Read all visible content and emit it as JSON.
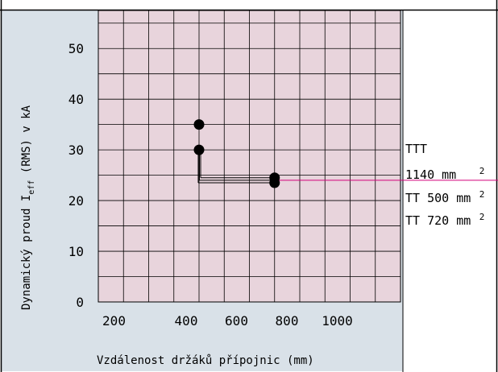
{
  "chart_data": {
    "type": "scatter",
    "xlabel": "Vzdálenost držáků přípojnic  (mm)",
    "ylabel_parts": [
      "Dynamický proud  I",
      "eff",
      " (RMS)  v kA"
    ],
    "x_ticks": [
      "200",
      "400",
      "600",
      "800",
      "1000"
    ],
    "x_tick_values": [
      200,
      400,
      600,
      800,
      1000
    ],
    "y_ticks": [
      "0",
      "10",
      "20",
      "30",
      "40",
      "50"
    ],
    "y_tick_values": [
      0,
      10,
      20,
      30,
      40,
      50
    ],
    "xlim": [
      0,
      1200
    ],
    "ylim": [
      0,
      57.5
    ],
    "grid": true,
    "points": [
      {
        "x": 400,
        "y": 35
      },
      {
        "x": 400,
        "y": 30
      },
      {
        "x": 700,
        "y": 24.5
      },
      {
        "x": 700,
        "y": 23.5
      }
    ],
    "connector": {
      "from_x": 400,
      "to_x": 700,
      "y_values": [
        23.5,
        24.0,
        24.5
      ]
    },
    "reference_y": 24,
    "legend": [
      {
        "main": "TTT",
        "sup": ""
      },
      {
        "main": "1140 mm",
        "sup": "2"
      },
      {
        "main": "TT 500 mm",
        "sup": "2"
      },
      {
        "main": "TT 720 mm",
        "sup": "2"
      }
    ],
    "colors": {
      "outer_panel": "#d9e1e8",
      "plot_bg": "#e8d4dc",
      "grid": "#000000",
      "marker": "#000000",
      "reference_line": "#d3007a"
    }
  }
}
